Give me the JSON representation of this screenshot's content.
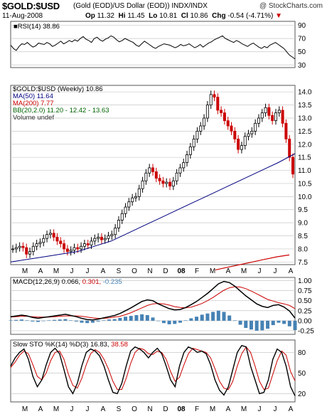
{
  "header": {
    "symbol": "$GOLD:$USD",
    "description": "(Gold (EOD)/US Dollar (EOD)) INDX/INDX",
    "watermark": "@ StockCharts.com",
    "date": "11-Aug-2008",
    "open_label": "Op",
    "open": "11.32",
    "high_label": "Hi",
    "high": "11.45",
    "low_label": "Lo",
    "low": "10.81",
    "close_label": "Cl",
    "close": "10.86",
    "change_label": "Chg",
    "change": "-0.54 (-4.71%)",
    "change_arrow": "▼"
  },
  "colors": {
    "price_up": "#000000",
    "price_down": "#cc0000",
    "ma50": "#000080",
    "ma200": "#cc0000",
    "bb": "#006400",
    "macd": "#000000",
    "macd_signal": "#cc0000",
    "histogram": "#4682b4",
    "rsi_fill": "#5a8a5a",
    "grid": "#c8c8c8"
  },
  "chart_data": [
    {
      "type": "line",
      "panel": "rsi",
      "legend": "RSI(14) 38.86",
      "y_ticks": [
        "90",
        "70",
        "50",
        "30"
      ],
      "ylim": [
        26,
        96
      ],
      "reference_lines": [
        30,
        70
      ],
      "series": [
        {
          "name": "RSI(14)",
          "values": [
            60,
            55,
            52,
            58,
            62,
            61,
            64,
            60,
            57,
            59,
            63,
            62,
            61,
            64,
            62,
            58,
            60,
            63,
            66,
            62,
            64,
            67,
            65,
            68,
            66,
            70,
            73,
            69,
            67,
            64,
            70,
            72,
            68,
            66,
            69,
            71,
            74,
            72,
            68,
            65,
            67,
            70,
            68,
            66,
            64,
            60,
            58,
            62,
            66,
            63,
            60,
            57,
            55,
            58,
            60,
            62,
            61,
            60,
            58,
            56,
            58,
            61,
            59,
            60,
            62,
            59,
            56,
            58,
            61,
            57,
            60,
            63,
            65,
            68,
            70,
            72,
            74,
            70,
            68,
            66,
            64,
            67,
            65,
            62,
            60,
            58,
            61,
            63,
            60,
            57,
            55,
            58,
            56,
            60,
            62,
            64,
            61,
            58,
            55,
            50,
            45,
            42,
            39
          ]
        }
      ]
    },
    {
      "type": "candlestick",
      "panel": "price",
      "title": "$GOLD:$USD (Weekly) 10.86",
      "y_ticks": [
        "14.0",
        "13.5",
        "13.0",
        "12.5",
        "12.0",
        "11.5",
        "11.0",
        "10.5",
        "10.0",
        "9.5",
        "9.0",
        "8.5",
        "8.0",
        "7.5"
      ],
      "ylim": [
        7.4,
        14.25
      ],
      "x_labels": [
        "M",
        "A",
        "M",
        "J",
        "J",
        "A",
        "S",
        "O",
        "N",
        "D",
        "08",
        "F",
        "M",
        "A",
        "M",
        "J",
        "J",
        "A"
      ],
      "series": [
        {
          "name": "$GOLD:$USD (Weekly) 10.86",
          "values": [
            8.0,
            8.05,
            8.1,
            8.05,
            7.8,
            7.9,
            8.1,
            8.2,
            8.25,
            8.4,
            8.55,
            8.6,
            8.45,
            8.3,
            8.2,
            8.0,
            7.9,
            7.95,
            8.05,
            8.0,
            8.1,
            8.2,
            8.15,
            8.3,
            8.4,
            8.45,
            8.35,
            8.4,
            8.5,
            8.55,
            8.8,
            9.1,
            9.35,
            9.6,
            9.8,
            9.95,
            10.0,
            10.3,
            10.6,
            10.9,
            11.1,
            10.95,
            10.7,
            10.6,
            10.5,
            10.55,
            10.4,
            10.6,
            10.9,
            11.1,
            11.3,
            11.6,
            11.9,
            12.2,
            12.5,
            12.7,
            13.0,
            13.5,
            13.9,
            13.8,
            13.3,
            13.2,
            12.9,
            12.7,
            12.5,
            12.2,
            11.8,
            11.95,
            12.3,
            12.4,
            12.5,
            12.8,
            13.0,
            13.2,
            13.4,
            13.1,
            12.9,
            13.2,
            13.3,
            12.8,
            12.2,
            11.5,
            10.86
          ]
        },
        {
          "name": "MA(50) 11.64",
          "values": [
            7.5,
            7.6,
            7.7,
            7.8,
            7.9,
            8.1,
            8.3,
            8.6,
            8.9,
            9.2,
            9.5,
            9.8,
            10.1,
            10.4,
            10.7,
            11.0,
            11.3,
            11.64
          ]
        },
        {
          "name": "MA(200) 7.77",
          "values": [
            7.2,
            7.3,
            7.4,
            7.5,
            7.6,
            7.7,
            7.77
          ]
        },
        {
          "name": "BB(20,2.0) 11.20 - 12.42 - 13.63",
          "values": []
        },
        {
          "name": "Volume undef",
          "values": []
        }
      ]
    },
    {
      "type": "line",
      "panel": "macd",
      "legend_prefix": "MACD(12,26,9)",
      "legend_macd": "0.066",
      "legend_signal": "0.301",
      "legend_hist": "-0.235",
      "y_ticks": [
        "1.00",
        "0.75",
        "0.50",
        "0.25",
        "0.00",
        "-0.25"
      ],
      "ylim": [
        -0.34,
        1.08
      ],
      "series": [
        {
          "name": "MACD",
          "values": [
            0.1,
            0.12,
            0.14,
            0.12,
            0.08,
            0.06,
            0.08,
            0.1,
            0.12,
            0.14,
            0.16,
            0.13,
            0.1,
            0.06,
            0.03,
            0.02,
            0.04,
            0.07,
            0.1,
            0.13,
            0.18,
            0.25,
            0.32,
            0.4,
            0.48,
            0.52,
            0.5,
            0.42,
            0.36,
            0.3,
            0.27,
            0.28,
            0.33,
            0.4,
            0.48,
            0.58,
            0.68,
            0.8,
            0.92,
            0.98,
            0.95,
            0.86,
            0.74,
            0.62,
            0.52,
            0.42,
            0.36,
            0.33,
            0.38,
            0.4,
            0.34,
            0.24,
            0.066
          ]
        },
        {
          "name": "Signal",
          "values": [
            0.09,
            0.1,
            0.11,
            0.11,
            0.1,
            0.09,
            0.09,
            0.09,
            0.1,
            0.11,
            0.12,
            0.12,
            0.12,
            0.11,
            0.09,
            0.07,
            0.06,
            0.06,
            0.07,
            0.09,
            0.11,
            0.15,
            0.2,
            0.26,
            0.32,
            0.38,
            0.42,
            0.43,
            0.42,
            0.39,
            0.35,
            0.33,
            0.32,
            0.34,
            0.38,
            0.43,
            0.5,
            0.58,
            0.67,
            0.76,
            0.82,
            0.85,
            0.84,
            0.8,
            0.74,
            0.67,
            0.6,
            0.53,
            0.49,
            0.45,
            0.42,
            0.38,
            0.301
          ]
        }
      ]
    },
    {
      "type": "line",
      "panel": "slow_sto",
      "legend_prefix": "Slow STO %K(14) %D(3)",
      "legend_k": "16.83",
      "legend_d": "38.58",
      "y_ticks": [
        "80",
        "50",
        "20"
      ],
      "ylim": [
        8,
        98
      ],
      "reference_lines": [
        20,
        80
      ],
      "series": [
        {
          "name": "%K(14)",
          "values": [
            60,
            72,
            80,
            85,
            70,
            45,
            30,
            40,
            62,
            80,
            86,
            78,
            55,
            30,
            20,
            35,
            60,
            80,
            85,
            82,
            75,
            60,
            40,
            22,
            20,
            35,
            60,
            82,
            88,
            85,
            80,
            72,
            80,
            86,
            78,
            60,
            40,
            30,
            60,
            80,
            88,
            85,
            80,
            82,
            78,
            62,
            40,
            25,
            18,
            30,
            55,
            80,
            90,
            88,
            60,
            40,
            20,
            22,
            40,
            70,
            85,
            80,
            60,
            30,
            16.83
          ]
        },
        {
          "name": "%D(3)",
          "values": [
            58,
            66,
            76,
            82,
            78,
            62,
            45,
            40,
            50,
            68,
            80,
            82,
            70,
            48,
            32,
            28,
            42,
            62,
            78,
            84,
            80,
            70,
            56,
            38,
            26,
            26,
            42,
            64,
            80,
            86,
            84,
            78,
            77,
            82,
            80,
            70,
            52,
            38,
            44,
            62,
            78,
            86,
            84,
            82,
            80,
            72,
            56,
            38,
            28,
            26,
            38,
            60,
            78,
            88,
            80,
            60,
            38,
            26,
            28,
            48,
            68,
            82,
            76,
            52,
            38.58
          ]
        }
      ]
    }
  ]
}
